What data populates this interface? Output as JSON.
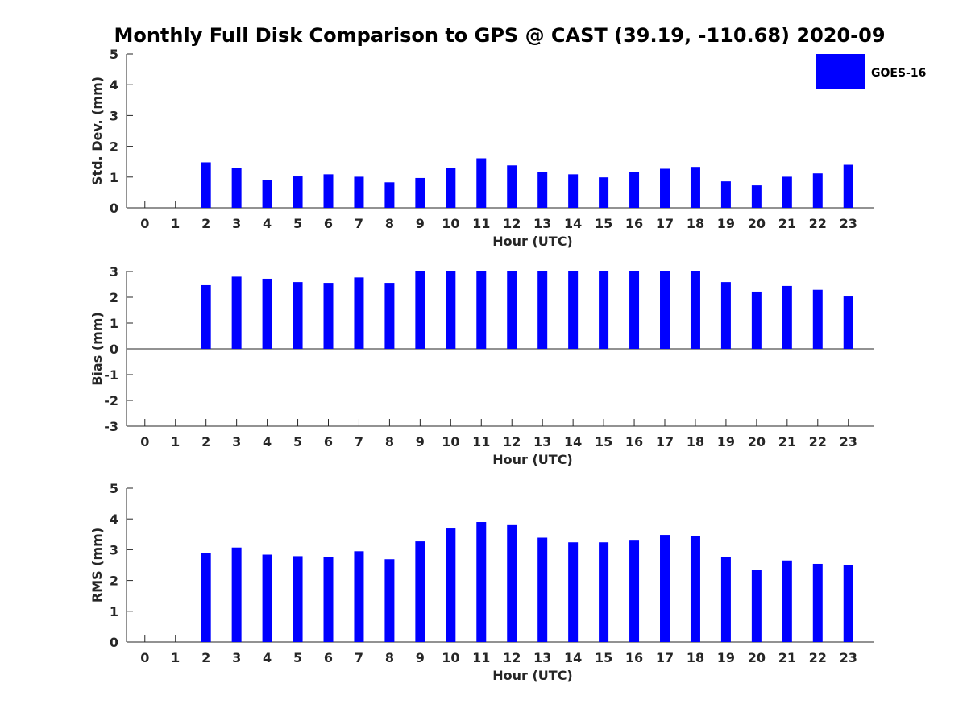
{
  "chart_data": {
    "title": "Monthly Full Disk Comparison to GPS @ CAST (39.19, -110.68) 2020-09",
    "type": "bar",
    "legend": {
      "label": "GOES-16",
      "color": "#0000ff",
      "placement": "top-right"
    },
    "categories": [
      "0",
      "1",
      "2",
      "3",
      "4",
      "5",
      "6",
      "7",
      "8",
      "9",
      "10",
      "11",
      "12",
      "13",
      "14",
      "15",
      "16",
      "17",
      "18",
      "19",
      "20",
      "21",
      "22",
      "23"
    ],
    "panels": [
      {
        "ylabel": "Std. Dev. (mm)",
        "xlabel": "Hour (UTC)",
        "ylim": [
          0,
          5
        ],
        "yticks": [
          "0",
          "1",
          "2",
          "3",
          "4",
          "5"
        ],
        "values": [
          null,
          null,
          1.48,
          1.3,
          0.89,
          1.02,
          1.09,
          1.01,
          0.83,
          0.97,
          1.3,
          1.61,
          1.38,
          1.17,
          1.09,
          0.99,
          1.17,
          1.27,
          1.33,
          0.86,
          0.73,
          1.01,
          1.12,
          1.4
        ]
      },
      {
        "ylabel": "Bias (mm)",
        "xlabel": "Hour (UTC)",
        "ylim": [
          -3,
          3
        ],
        "yticks": [
          "-3",
          "-2",
          "-1",
          "0",
          "1",
          "2",
          "3"
        ],
        "values": [
          null,
          null,
          2.47,
          2.8,
          2.72,
          2.59,
          2.56,
          2.77,
          2.56,
          3.0,
          3.0,
          3.0,
          3.0,
          3.0,
          3.0,
          3.0,
          3.0,
          3.0,
          3.0,
          2.59,
          2.22,
          2.44,
          2.29,
          2.03
        ]
      },
      {
        "ylabel": "RMS (mm)",
        "xlabel": "Hour (UTC)",
        "ylim": [
          0,
          5
        ],
        "yticks": [
          "0",
          "1",
          "2",
          "3",
          "4",
          "5"
        ],
        "values": [
          null,
          null,
          2.88,
          3.07,
          2.84,
          2.79,
          2.77,
          2.95,
          2.69,
          3.27,
          3.69,
          3.9,
          3.8,
          3.39,
          3.24,
          3.24,
          3.32,
          3.48,
          3.45,
          2.75,
          2.33,
          2.65,
          2.54,
          2.49
        ]
      }
    ]
  }
}
